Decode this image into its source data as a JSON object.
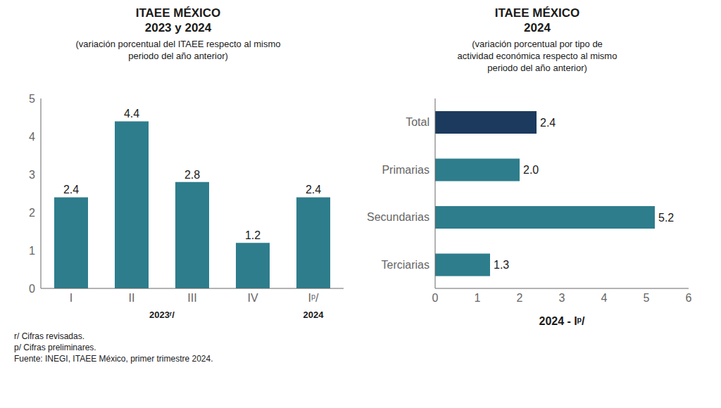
{
  "chart_data": [
    {
      "type": "bar",
      "title": "ITAEE MÉXICO\n2023 y 2024",
      "subtitle": "(variación porcentual del ITAEE respecto al mismo\nperiodo del año anterior)",
      "categories": [
        "I",
        "II",
        "III",
        "IV",
        "Iᵖ/"
      ],
      "groups": [
        {
          "label": "2023ʳ/",
          "categories": [
            "I",
            "II",
            "III",
            "IV"
          ]
        },
        {
          "label": "2024",
          "categories": [
            "Iᵖ/"
          ]
        }
      ],
      "values": [
        2.4,
        4.4,
        2.8,
        1.2,
        2.4
      ],
      "color": "#2e7d8c",
      "ylim": [
        0,
        5
      ],
      "yticks": [
        0,
        1,
        2,
        3,
        4,
        5
      ],
      "grid": false,
      "data_labels": true,
      "annotations": [
        "r/ Cifras revisadas.",
        "p/ Cifras preliminares.",
        "Fuente: INEGI, ITAEE México, primer trimestre 2024."
      ]
    },
    {
      "type": "bar",
      "orientation": "horizontal",
      "title": "ITAEE MÉXICO\n2024",
      "subtitle": "(variación porcentual por tipo de\nactividad económica respecto al mismo\nperiodo del año anterior)",
      "categories": [
        "Total",
        "Primarias",
        "Secundarias",
        "Terciarias"
      ],
      "values": [
        2.4,
        2.0,
        5.2,
        1.3
      ],
      "value_labels": [
        "2.4",
        "2.0",
        "5.2",
        "1.3"
      ],
      "colors": [
        "#1b3a5e",
        "#2e7d8c",
        "#2e7d8c",
        "#2e7d8c"
      ],
      "xlim": [
        0,
        6
      ],
      "xticks": [
        0,
        1,
        2,
        3,
        4,
        5,
        6
      ],
      "xlabel": "2024 - Iᵖ/",
      "grid": false,
      "data_labels": true
    }
  ]
}
